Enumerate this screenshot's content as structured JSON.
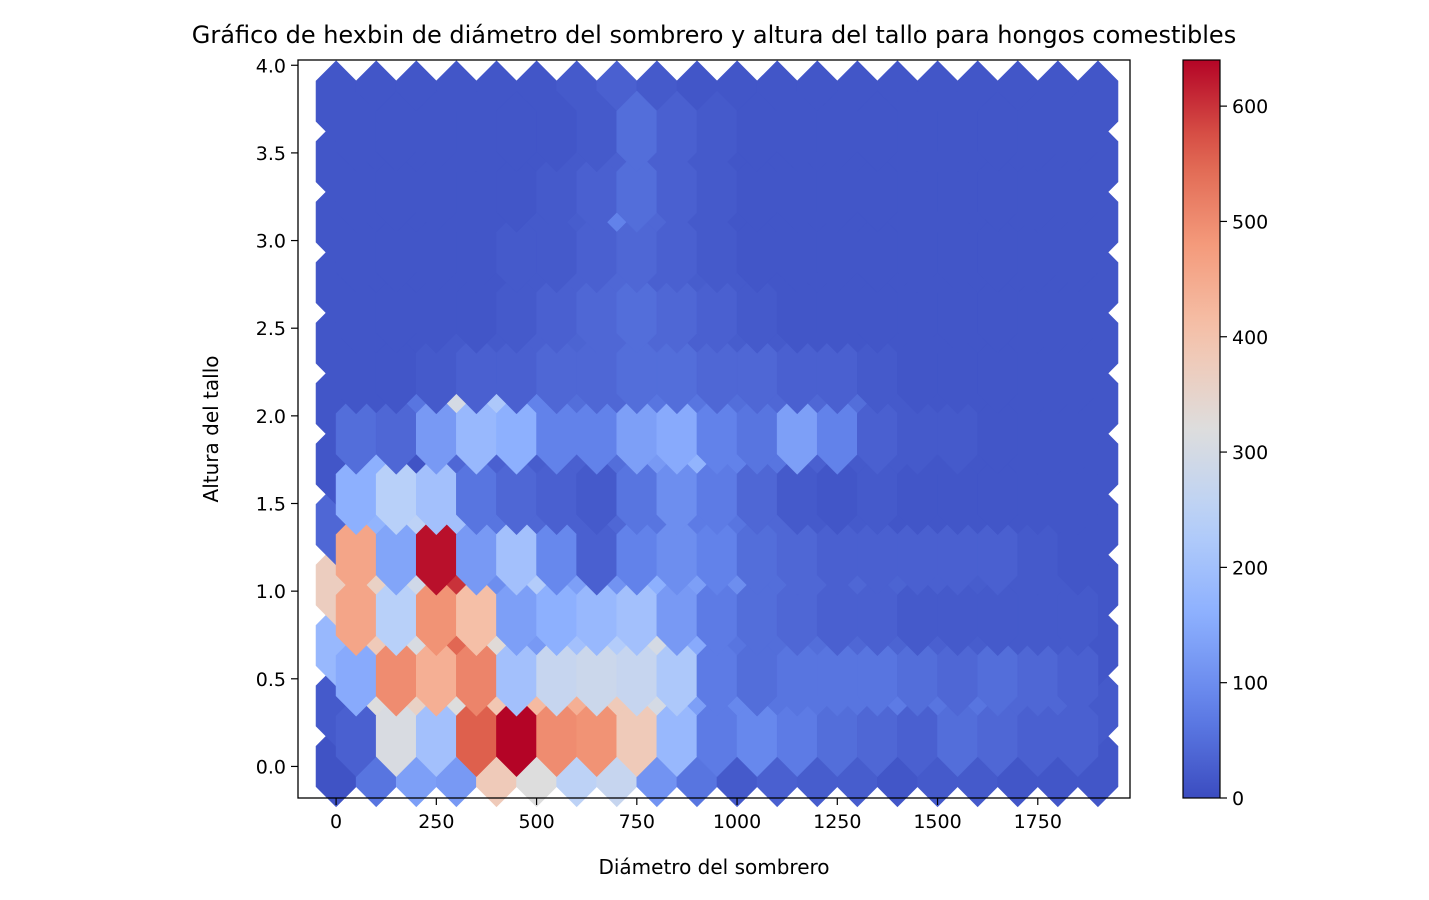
{
  "chart_data": {
    "type": "heatmap",
    "subtype": "hexbin",
    "title": "Gráfico de hexbin de diámetro del sombrero y altura del tallo para hongos comestibles",
    "xlabel": "Diámetro del sombrero",
    "ylabel": "Altura del tallo",
    "xlim": [
      -95,
      1980
    ],
    "ylim": [
      -0.18,
      4.03
    ],
    "xticks": [
      0,
      250,
      500,
      750,
      1000,
      1250,
      1500,
      1750
    ],
    "xtick_labels": [
      "0",
      "250",
      "500",
      "750",
      "1000",
      "1250",
      "1500",
      "1750"
    ],
    "yticks": [
      0.0,
      0.5,
      1.0,
      1.5,
      2.0,
      2.5,
      3.0,
      3.5,
      4.0
    ],
    "ytick_labels": [
      "0.0",
      "0.5",
      "1.0",
      "1.5",
      "2.0",
      "2.5",
      "3.0",
      "3.5",
      "4.0"
    ],
    "colormap": "coolwarm",
    "colorbar": {
      "min": 0,
      "max": 640,
      "ticks": [
        0,
        100,
        200,
        300,
        400,
        500,
        600
      ],
      "tick_labels": [
        "0",
        "100",
        "200",
        "300",
        "400",
        "500",
        "600"
      ]
    },
    "grid": false,
    "hex_grid": {
      "x_origin": 0,
      "x_step": 100,
      "y_origin": 0,
      "y_step": 0.345,
      "rows_even": 12,
      "cols_even": 20,
      "rows_odd": 11,
      "cols_odd": 19
    },
    "even_row_counts": [
      [
        10,
        60,
        130,
        120,
        380,
        320,
        250,
        270,
        110,
        60,
        20,
        30,
        25,
        25,
        15,
        20,
        20,
        15,
        15,
        15
      ],
      [
        20,
        320,
        360,
        320,
        390,
        420,
        440,
        380,
        300,
        130,
        90,
        60,
        60,
        60,
        70,
        60,
        60,
        40,
        40,
        20
      ],
      [
        180,
        380,
        310,
        550,
        330,
        120,
        200,
        230,
        300,
        150,
        60,
        50,
        50,
        40,
        35,
        30,
        25,
        20,
        20,
        15
      ],
      [
        370,
        360,
        290,
        600,
        100,
        230,
        130,
        110,
        160,
        130,
        100,
        50,
        40,
        40,
        35,
        30,
        25,
        20,
        20,
        15
      ],
      [
        40,
        170,
        250,
        200,
        60,
        40,
        30,
        40,
        60,
        70,
        60,
        40,
        20,
        20,
        15,
        15,
        15,
        15,
        15,
        15
      ],
      [
        15,
        160,
        10,
        40,
        30,
        25,
        30,
        50,
        120,
        170,
        80,
        60,
        30,
        20,
        20,
        15,
        15,
        15,
        15,
        15
      ],
      [
        15,
        15,
        60,
        300,
        220,
        80,
        50,
        40,
        60,
        60,
        50,
        40,
        40,
        50,
        20,
        15,
        15,
        15,
        15,
        15
      ],
      [
        15,
        15,
        15,
        20,
        20,
        30,
        35,
        40,
        40,
        30,
        25,
        20,
        15,
        15,
        15,
        15,
        15,
        15,
        15,
        15
      ],
      [
        15,
        15,
        15,
        15,
        15,
        20,
        30,
        40,
        30,
        25,
        20,
        15,
        15,
        15,
        15,
        15,
        15,
        15,
        15,
        15
      ],
      [
        15,
        15,
        15,
        15,
        15,
        20,
        25,
        80,
        40,
        20,
        15,
        15,
        15,
        15,
        15,
        15,
        15,
        15,
        15,
        15
      ],
      [
        15,
        15,
        15,
        15,
        15,
        15,
        20,
        30,
        30,
        20,
        15,
        15,
        15,
        15,
        15,
        15,
        15,
        15,
        15,
        15
      ],
      [
        15,
        15,
        15,
        15,
        15,
        15,
        20,
        30,
        20,
        15,
        15,
        15,
        15,
        15,
        15,
        15,
        15,
        15,
        15,
        15
      ]
    ],
    "odd_row_counts": [
      [
        30,
        310,
        200,
        560,
        640,
        500,
        490,
        380,
        180,
        70,
        90,
        70,
        50,
        40,
        30,
        50,
        40,
        30,
        30
      ],
      [
        150,
        500,
        440,
        510,
        200,
        270,
        280,
        270,
        220,
        70,
        50,
        60,
        60,
        60,
        50,
        40,
        50,
        40,
        30
      ],
      [
        460,
        240,
        490,
        410,
        130,
        160,
        180,
        200,
        120,
        70,
        50,
        40,
        30,
        30,
        20,
        20,
        20,
        20,
        20
      ],
      [
        460,
        140,
        630,
        120,
        200,
        90,
        30,
        80,
        100,
        80,
        50,
        40,
        30,
        30,
        30,
        30,
        30,
        20,
        15
      ],
      [
        160,
        240,
        200,
        60,
        40,
        30,
        20,
        60,
        100,
        70,
        40,
        20,
        15,
        20,
        15,
        15,
        15,
        15,
        15
      ],
      [
        50,
        40,
        120,
        180,
        160,
        80,
        80,
        130,
        150,
        80,
        60,
        130,
        80,
        30,
        20,
        20,
        15,
        15,
        15
      ],
      [
        15,
        15,
        20,
        30,
        30,
        40,
        40,
        50,
        50,
        40,
        40,
        30,
        30,
        20,
        15,
        15,
        15,
        15,
        15
      ],
      [
        15,
        15,
        15,
        15,
        20,
        30,
        40,
        50,
        40,
        30,
        20,
        15,
        15,
        15,
        15,
        15,
        15,
        15,
        15
      ],
      [
        15,
        15,
        15,
        15,
        20,
        20,
        30,
        40,
        30,
        20,
        15,
        15,
        15,
        15,
        15,
        15,
        15,
        15,
        15
      ],
      [
        15,
        15,
        15,
        15,
        15,
        20,
        30,
        50,
        30,
        20,
        15,
        15,
        15,
        15,
        15,
        15,
        15,
        15,
        15
      ],
      [
        15,
        15,
        15,
        15,
        15,
        15,
        20,
        50,
        30,
        20,
        15,
        15,
        15,
        15,
        15,
        15,
        15,
        15,
        15
      ]
    ]
  }
}
